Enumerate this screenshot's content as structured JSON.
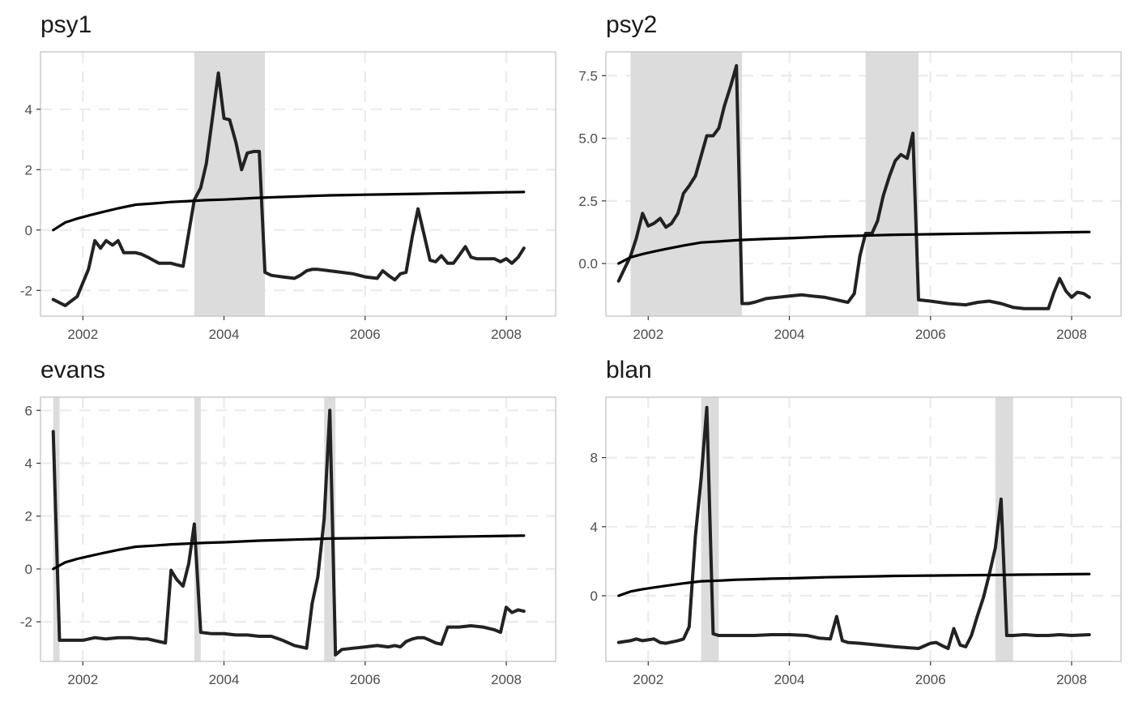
{
  "chart_data": [
    {
      "type": "line",
      "title": "psy1",
      "xlim": [
        2001.4,
        2008.7
      ],
      "ylim": [
        -2.85,
        5.9
      ],
      "x_ticks": [
        2002,
        2004,
        2006,
        2008
      ],
      "x_tick_labels": [
        "2002",
        "2004",
        "2006",
        "2008"
      ],
      "y_ticks": [
        -2,
        0,
        2,
        4
      ],
      "y_tick_labels": [
        "-2",
        "0",
        "2",
        "4"
      ],
      "grid": true,
      "shaded_periods": [
        [
          2003.58,
          2004.58
        ]
      ],
      "series": [
        {
          "role": "statistic",
          "x": [
            2001.58,
            2001.75,
            2001.92,
            2002.08,
            2002.17,
            2002.25,
            2002.33,
            2002.42,
            2002.5,
            2002.58,
            2002.67,
            2002.75,
            2002.83,
            2002.92,
            2003.0,
            2003.08,
            2003.17,
            2003.25,
            2003.33,
            2003.42,
            2003.58,
            2003.67,
            2003.75,
            2003.83,
            2003.92,
            2004.0,
            2004.08,
            2004.17,
            2004.25,
            2004.33,
            2004.42,
            2004.5,
            2004.58,
            2004.67,
            2004.83,
            2005.0,
            2005.08,
            2005.17,
            2005.25,
            2005.33,
            2005.5,
            2005.67,
            2005.83,
            2006.0,
            2006.17,
            2006.25,
            2006.33,
            2006.42,
            2006.5,
            2006.58,
            2006.67,
            2006.75,
            2006.83,
            2006.92,
            2007.0,
            2007.08,
            2007.17,
            2007.25,
            2007.33,
            2007.42,
            2007.5,
            2007.58,
            2007.67,
            2007.75,
            2007.83,
            2007.92,
            2008.0,
            2008.08,
            2008.17,
            2008.25
          ],
          "y": [
            -2.3,
            -2.5,
            -2.2,
            -1.3,
            -0.35,
            -0.6,
            -0.35,
            -0.5,
            -0.35,
            -0.75,
            -0.75,
            -0.75,
            -0.8,
            -0.9,
            -1.0,
            -1.1,
            -1.1,
            -1.1,
            -1.15,
            -1.2,
            1.0,
            1.4,
            2.2,
            3.6,
            5.2,
            3.7,
            3.65,
            2.9,
            2.0,
            2.55,
            2.6,
            2.6,
            -1.4,
            -1.5,
            -1.55,
            -1.6,
            -1.5,
            -1.35,
            -1.3,
            -1.3,
            -1.35,
            -1.4,
            -1.45,
            -1.55,
            -1.6,
            -1.35,
            -1.5,
            -1.65,
            -1.45,
            -1.4,
            -0.2,
            0.7,
            -0.1,
            -1.0,
            -1.05,
            -0.85,
            -1.1,
            -1.1,
            -0.85,
            -0.55,
            -0.9,
            -0.95,
            -0.95,
            -0.95,
            -0.95,
            -1.05,
            -0.95,
            -1.1,
            -0.9,
            -0.6
          ]
        },
        {
          "role": "critical_value",
          "x": [
            2001.58,
            2001.75,
            2001.92,
            2002.08,
            2002.25,
            2002.5,
            2002.75,
            2003.0,
            2003.25,
            2003.5,
            2003.75,
            2004.0,
            2004.25,
            2004.5,
            2004.75,
            2005.0,
            2005.25,
            2005.5,
            2005.75,
            2006.0,
            2006.25,
            2006.5,
            2006.75,
            2007.0,
            2007.25,
            2007.5,
            2007.75,
            2008.0,
            2008.25
          ],
          "y": [
            0.0,
            0.25,
            0.38,
            0.48,
            0.58,
            0.72,
            0.84,
            0.88,
            0.93,
            0.96,
            0.99,
            1.01,
            1.04,
            1.07,
            1.09,
            1.11,
            1.13,
            1.15,
            1.16,
            1.17,
            1.18,
            1.19,
            1.2,
            1.21,
            1.22,
            1.23,
            1.24,
            1.25,
            1.26
          ]
        }
      ]
    },
    {
      "type": "line",
      "title": "psy2",
      "xlim": [
        2001.4,
        2008.7
      ],
      "ylim": [
        -2.1,
        8.45
      ],
      "x_ticks": [
        2002,
        2004,
        2006,
        2008
      ],
      "x_tick_labels": [
        "2002",
        "2004",
        "2006",
        "2008"
      ],
      "y_ticks": [
        0.0,
        2.5,
        5.0,
        7.5
      ],
      "y_tick_labels": [
        "0.0",
        "2.5",
        "5.0",
        "7.5"
      ],
      "grid": true,
      "shaded_periods": [
        [
          2001.75,
          2003.33
        ],
        [
          2005.08,
          2005.83
        ]
      ],
      "series": [
        {
          "role": "statistic",
          "x": [
            2001.58,
            2001.75,
            2001.83,
            2001.92,
            2002.0,
            2002.08,
            2002.17,
            2002.25,
            2002.33,
            2002.42,
            2002.5,
            2002.58,
            2002.67,
            2002.75,
            2002.83,
            2002.92,
            2003.0,
            2003.08,
            2003.17,
            2003.25,
            2003.33,
            2003.42,
            2003.5,
            2003.67,
            2003.83,
            2004.0,
            2004.17,
            2004.33,
            2004.5,
            2004.67,
            2004.75,
            2004.83,
            2004.92,
            2005.0,
            2005.08,
            2005.17,
            2005.25,
            2005.33,
            2005.42,
            2005.5,
            2005.58,
            2005.67,
            2005.75,
            2005.83,
            2006.0,
            2006.25,
            2006.5,
            2006.67,
            2006.83,
            2007.0,
            2007.17,
            2007.33,
            2007.5,
            2007.67,
            2007.75,
            2007.83,
            2007.92,
            2008.0,
            2008.08,
            2008.17,
            2008.25
          ],
          "y": [
            -0.7,
            0.3,
            1.0,
            2.0,
            1.5,
            1.6,
            1.8,
            1.45,
            1.6,
            2.0,
            2.8,
            3.1,
            3.5,
            4.3,
            5.1,
            5.1,
            5.4,
            6.3,
            7.1,
            7.9,
            -1.6,
            -1.6,
            -1.55,
            -1.4,
            -1.35,
            -1.3,
            -1.25,
            -1.3,
            -1.35,
            -1.45,
            -1.5,
            -1.55,
            -1.2,
            0.3,
            1.2,
            1.2,
            1.7,
            2.7,
            3.5,
            4.1,
            4.35,
            4.2,
            5.2,
            -1.45,
            -1.5,
            -1.6,
            -1.65,
            -1.55,
            -1.5,
            -1.6,
            -1.75,
            -1.8,
            -1.8,
            -1.8,
            -1.15,
            -0.6,
            -1.1,
            -1.35,
            -1.15,
            -1.2,
            -1.35
          ]
        },
        {
          "role": "critical_value",
          "x": [
            2001.58,
            2001.75,
            2001.92,
            2002.08,
            2002.25,
            2002.5,
            2002.75,
            2003.0,
            2003.25,
            2003.5,
            2003.75,
            2004.0,
            2004.25,
            2004.5,
            2004.75,
            2005.0,
            2005.25,
            2005.5,
            2005.75,
            2006.0,
            2006.25,
            2006.5,
            2006.75,
            2007.0,
            2007.25,
            2007.5,
            2007.75,
            2008.0,
            2008.25
          ],
          "y": [
            0.0,
            0.25,
            0.38,
            0.48,
            0.58,
            0.72,
            0.84,
            0.88,
            0.93,
            0.96,
            0.99,
            1.01,
            1.04,
            1.07,
            1.09,
            1.11,
            1.13,
            1.15,
            1.16,
            1.17,
            1.18,
            1.19,
            1.2,
            1.21,
            1.22,
            1.23,
            1.24,
            1.25,
            1.26
          ]
        }
      ]
    },
    {
      "type": "line",
      "title": "evans",
      "xlim": [
        2001.4,
        2008.7
      ],
      "ylim": [
        -3.5,
        6.5
      ],
      "x_ticks": [
        2002,
        2004,
        2006,
        2008
      ],
      "x_tick_labels": [
        "2002",
        "2004",
        "2006",
        "2008"
      ],
      "y_ticks": [
        -2,
        0,
        2,
        4,
        6
      ],
      "y_tick_labels": [
        "-2",
        "0",
        "2",
        "4",
        "6"
      ],
      "grid": true,
      "shaded_periods": [
        [
          2001.58,
          2001.67
        ],
        [
          2003.58,
          2003.67
        ],
        [
          2005.42,
          2005.58
        ]
      ],
      "series": [
        {
          "role": "statistic",
          "x": [
            2001.58,
            2001.67,
            2001.75,
            2001.92,
            2002.0,
            2002.17,
            2002.33,
            2002.5,
            2002.67,
            2002.83,
            2002.92,
            2003.08,
            2003.17,
            2003.25,
            2003.33,
            2003.42,
            2003.5,
            2003.58,
            2003.67,
            2003.83,
            2004.0,
            2004.17,
            2004.33,
            2004.5,
            2004.67,
            2004.83,
            2005.0,
            2005.17,
            2005.25,
            2005.33,
            2005.42,
            2005.5,
            2005.58,
            2005.67,
            2005.83,
            2006.0,
            2006.17,
            2006.33,
            2006.42,
            2006.5,
            2006.58,
            2006.67,
            2006.75,
            2006.83,
            2006.92,
            2007.0,
            2007.08,
            2007.17,
            2007.33,
            2007.5,
            2007.67,
            2007.83,
            2007.92,
            2008.0,
            2008.08,
            2008.17,
            2008.25
          ],
          "y": [
            5.2,
            -2.7,
            -2.7,
            -2.7,
            -2.7,
            -2.6,
            -2.65,
            -2.6,
            -2.6,
            -2.65,
            -2.65,
            -2.75,
            -2.8,
            -0.05,
            -0.4,
            -0.65,
            0.2,
            1.7,
            -2.4,
            -2.45,
            -2.45,
            -2.5,
            -2.5,
            -2.55,
            -2.55,
            -2.7,
            -2.9,
            -3.0,
            -1.3,
            -0.3,
            1.9,
            6.0,
            -3.25,
            -3.05,
            -3.0,
            -2.95,
            -2.9,
            -2.95,
            -2.9,
            -2.95,
            -2.75,
            -2.65,
            -2.6,
            -2.6,
            -2.7,
            -2.8,
            -2.85,
            -2.2,
            -2.2,
            -2.15,
            -2.2,
            -2.3,
            -2.4,
            -1.45,
            -1.65,
            -1.55,
            -1.6
          ]
        },
        {
          "role": "critical_value",
          "x": [
            2001.58,
            2001.75,
            2001.92,
            2002.08,
            2002.25,
            2002.5,
            2002.75,
            2003.0,
            2003.25,
            2003.5,
            2003.75,
            2004.0,
            2004.25,
            2004.5,
            2004.75,
            2005.0,
            2005.25,
            2005.5,
            2005.75,
            2006.0,
            2006.25,
            2006.5,
            2006.75,
            2007.0,
            2007.25,
            2007.5,
            2007.75,
            2008.0,
            2008.25
          ],
          "y": [
            0.0,
            0.25,
            0.38,
            0.48,
            0.58,
            0.72,
            0.84,
            0.88,
            0.93,
            0.96,
            0.99,
            1.01,
            1.04,
            1.07,
            1.09,
            1.11,
            1.13,
            1.15,
            1.16,
            1.17,
            1.18,
            1.19,
            1.2,
            1.21,
            1.22,
            1.23,
            1.24,
            1.25,
            1.26
          ]
        }
      ]
    },
    {
      "type": "line",
      "title": "blan",
      "xlim": [
        2001.4,
        2008.7
      ],
      "ylim": [
        -3.8,
        11.5
      ],
      "x_ticks": [
        2002,
        2004,
        2006,
        2008
      ],
      "x_tick_labels": [
        "2002",
        "2004",
        "2006",
        "2008"
      ],
      "y_ticks": [
        0,
        4,
        8
      ],
      "y_tick_labels": [
        "0",
        "4",
        "8"
      ],
      "grid": true,
      "shaded_periods": [
        [
          2002.75,
          2003.0
        ],
        [
          2006.92,
          2007.17
        ]
      ],
      "series": [
        {
          "role": "statistic",
          "x": [
            2001.58,
            2001.75,
            2001.83,
            2001.92,
            2002.08,
            2002.17,
            2002.25,
            2002.42,
            2002.5,
            2002.58,
            2002.67,
            2002.75,
            2002.83,
            2002.92,
            2003.0,
            2003.08,
            2003.25,
            2003.5,
            2003.75,
            2004.0,
            2004.25,
            2004.42,
            2004.58,
            2004.67,
            2004.75,
            2004.83,
            2005.0,
            2005.25,
            2005.5,
            2005.67,
            2005.83,
            2006.0,
            2006.08,
            2006.17,
            2006.25,
            2006.33,
            2006.42,
            2006.5,
            2006.58,
            2006.67,
            2006.75,
            2006.83,
            2006.92,
            2007.0,
            2007.08,
            2007.17,
            2007.33,
            2007.5,
            2007.67,
            2007.83,
            2008.0,
            2008.25
          ],
          "y": [
            -2.7,
            -2.6,
            -2.5,
            -2.6,
            -2.5,
            -2.7,
            -2.75,
            -2.6,
            -2.5,
            -1.8,
            3.5,
            6.8,
            10.9,
            -2.2,
            -2.3,
            -2.3,
            -2.3,
            -2.3,
            -2.25,
            -2.25,
            -2.3,
            -2.45,
            -2.5,
            -1.2,
            -2.6,
            -2.7,
            -2.75,
            -2.85,
            -2.95,
            -3.0,
            -3.05,
            -2.75,
            -2.7,
            -2.9,
            -3.05,
            -1.9,
            -2.85,
            -2.95,
            -2.3,
            -1.1,
            -0.1,
            1.2,
            2.8,
            5.6,
            -2.3,
            -2.3,
            -2.25,
            -2.3,
            -2.3,
            -2.25,
            -2.3,
            -2.25
          ]
        },
        {
          "role": "critical_value",
          "x": [
            2001.58,
            2001.75,
            2001.92,
            2002.08,
            2002.25,
            2002.5,
            2002.75,
            2003.0,
            2003.25,
            2003.5,
            2003.75,
            2004.0,
            2004.25,
            2004.5,
            2004.75,
            2005.0,
            2005.25,
            2005.5,
            2005.75,
            2006.0,
            2006.25,
            2006.5,
            2006.75,
            2007.0,
            2007.25,
            2007.5,
            2007.75,
            2008.0,
            2008.25
          ],
          "y": [
            0.0,
            0.25,
            0.38,
            0.48,
            0.58,
            0.72,
            0.84,
            0.88,
            0.93,
            0.96,
            0.99,
            1.01,
            1.04,
            1.07,
            1.09,
            1.11,
            1.13,
            1.15,
            1.16,
            1.17,
            1.18,
            1.19,
            1.2,
            1.21,
            1.22,
            1.23,
            1.24,
            1.25,
            1.26
          ]
        }
      ]
    }
  ]
}
